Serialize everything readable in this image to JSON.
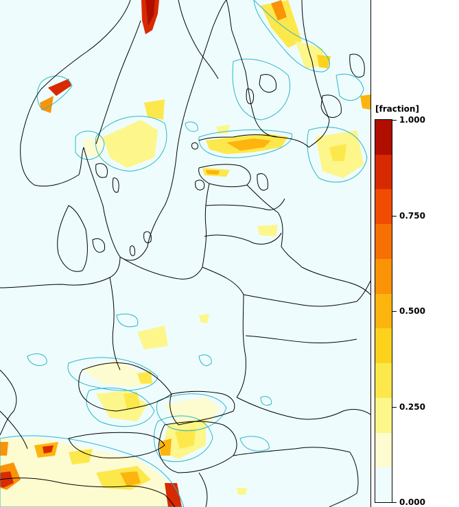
{
  "legend": {
    "title": "[fraction]",
    "ticks": [
      {
        "value": 1.0,
        "label": "1.000"
      },
      {
        "value": 0.75,
        "label": "0.750"
      },
      {
        "value": 0.5,
        "label": "0.500"
      },
      {
        "value": 0.25,
        "label": "0.250"
      },
      {
        "value": 0.0,
        "label": "0.000"
      }
    ],
    "colors": [
      "#eefcfd",
      "#fdfbd0",
      "#fdf68a",
      "#fde84c",
      "#fdd21c",
      "#fdb40e",
      "#fb9307",
      "#f77004",
      "#f04c02",
      "#d82a01",
      "#b00f00"
    ]
  },
  "map": {
    "background_color": "#eefcfd",
    "contour_color": "#2bb6c8",
    "border_color": "#000000"
  }
}
